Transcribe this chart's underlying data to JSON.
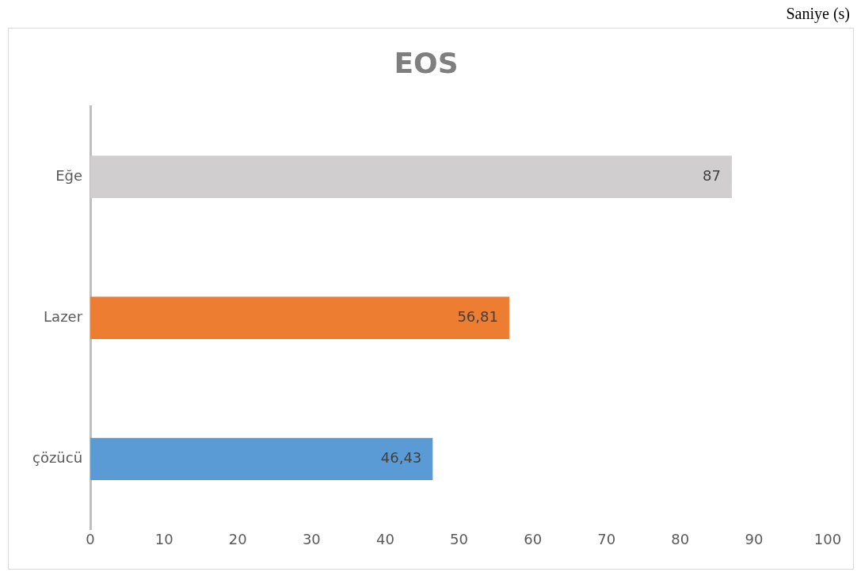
{
  "chart_data": {
    "type": "bar",
    "orientation": "horizontal",
    "title": "EOS",
    "annotations": [
      "Saniye (s)"
    ],
    "categories": [
      "Eğe",
      "Lazer",
      "çözücü"
    ],
    "values": [
      87,
      56.81,
      46.43
    ],
    "colors": [
      "#d0cece",
      "#ed7d31",
      "#5b9bd5"
    ],
    "value_labels": [
      "87",
      "56,81",
      "46,43"
    ],
    "xlim": [
      0,
      100
    ],
    "xticks": [
      0,
      10,
      20,
      30,
      40,
      50,
      60,
      70,
      80,
      90,
      100
    ],
    "grid": false,
    "legend": false
  }
}
